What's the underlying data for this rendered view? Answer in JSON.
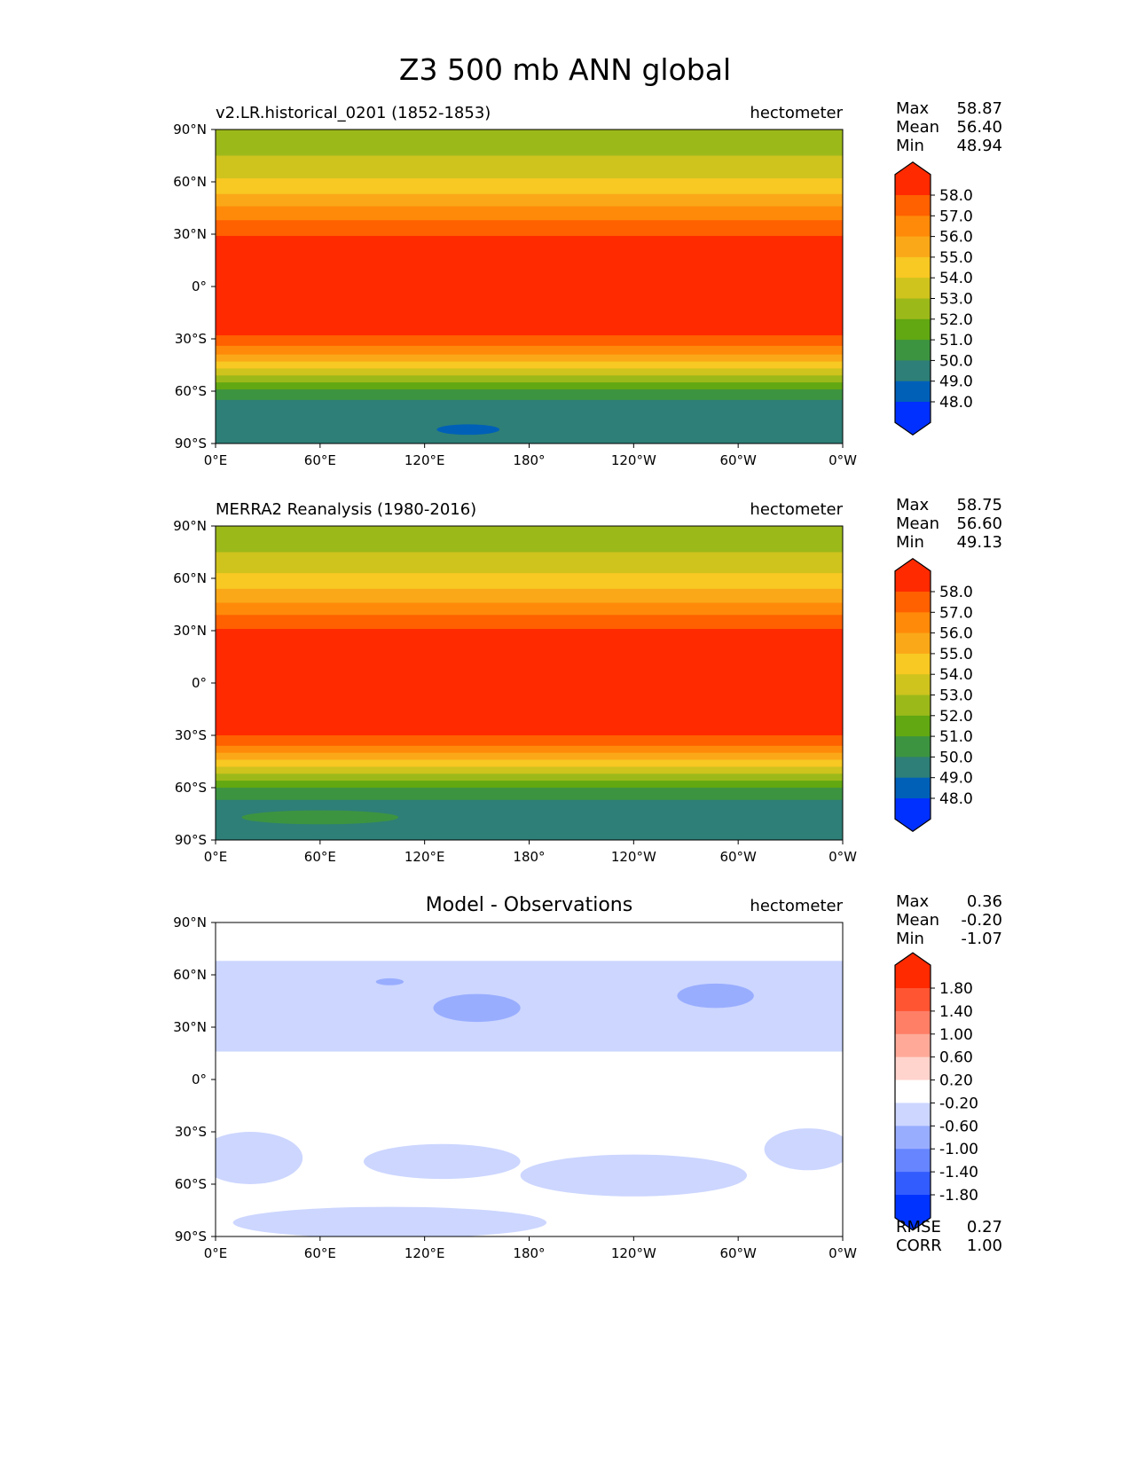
{
  "chart_data": {
    "type": "heatmap",
    "title": "Z3 500 mb ANN global",
    "xticks": [
      "0°E",
      "60°E",
      "120°E",
      "180°",
      "120°W",
      "60°W",
      "0°W"
    ],
    "yticks": [
      "90°N",
      "60°N",
      "30°N",
      "0°",
      "30°S",
      "60°S",
      "90°S"
    ],
    "panels": [
      {
        "left_title": "v2.LR.historical_0201 (1852-1853)",
        "center_title": "",
        "units": "hectometer",
        "stats": [
          [
            "Max",
            "58.87"
          ],
          [
            "Mean",
            "56.40"
          ],
          [
            "Min",
            "48.94"
          ]
        ],
        "levels": [
          "58.0",
          "57.0",
          "56.0",
          "55.0",
          "54.0",
          "53.0",
          "52.0",
          "51.0",
          "50.0",
          "49.0",
          "48.0"
        ],
        "colors": [
          "#ff2a00",
          "#ff6000",
          "#ff8a0a",
          "#fba818",
          "#f8c823",
          "#cfc31e",
          "#9cb91a",
          "#61a812",
          "#3d9440",
          "#2e7f77",
          "#0060b8",
          "#0030ff"
        ],
        "bands": [
          [
            90,
            75,
            6
          ],
          [
            75,
            62,
            5
          ],
          [
            62,
            53,
            4
          ],
          [
            53,
            46,
            3
          ],
          [
            46,
            38,
            2
          ],
          [
            38,
            29,
            1
          ],
          [
            29,
            -28,
            0
          ],
          [
            -28,
            -34,
            1
          ],
          [
            -34,
            -39,
            2
          ],
          [
            -39,
            -43,
            3
          ],
          [
            -43,
            -47,
            4
          ],
          [
            -47,
            -51,
            5
          ],
          [
            -51,
            -55,
            6
          ],
          [
            -55,
            -59,
            7
          ],
          [
            -59,
            -65,
            8
          ],
          [
            -65,
            -90,
            9
          ]
        ],
        "blobs": [
          [
            145,
            -82,
            18,
            3,
            10
          ]
        ],
        "footer": []
      },
      {
        "left_title": "MERRA2 Reanalysis (1980-2016)",
        "center_title": "",
        "units": "hectometer",
        "stats": [
          [
            "Max",
            "58.75"
          ],
          [
            "Mean",
            "56.60"
          ],
          [
            "Min",
            "49.13"
          ]
        ],
        "levels": [
          "58.0",
          "57.0",
          "56.0",
          "55.0",
          "54.0",
          "53.0",
          "52.0",
          "51.0",
          "50.0",
          "49.0",
          "48.0"
        ],
        "colors": [
          "#ff2a00",
          "#ff6000",
          "#ff8a0a",
          "#fba818",
          "#f8c823",
          "#cfc31e",
          "#9cb91a",
          "#61a812",
          "#3d9440",
          "#2e7f77",
          "#0060b8",
          "#0030ff"
        ],
        "bands": [
          [
            90,
            75,
            6
          ],
          [
            75,
            63,
            5
          ],
          [
            63,
            54,
            4
          ],
          [
            54,
            46,
            3
          ],
          [
            46,
            39,
            2
          ],
          [
            39,
            31,
            1
          ],
          [
            31,
            -30,
            0
          ],
          [
            -30,
            -36,
            1
          ],
          [
            -36,
            -40,
            2
          ],
          [
            -40,
            -44,
            3
          ],
          [
            -44,
            -48,
            4
          ],
          [
            -48,
            -52,
            5
          ],
          [
            -52,
            -56,
            6
          ],
          [
            -56,
            -60,
            7
          ],
          [
            -60,
            -67,
            8
          ],
          [
            -67,
            -90,
            9
          ]
        ],
        "blobs": [
          [
            60,
            -77,
            45,
            4,
            8
          ]
        ],
        "footer": []
      },
      {
        "left_title": "",
        "center_title": "Model - Observations",
        "units": "hectometer",
        "stats": [
          [
            "Max",
            "0.36"
          ],
          [
            "Mean",
            "-0.20"
          ],
          [
            "Min",
            "-1.07"
          ]
        ],
        "levels": [
          "1.80",
          "1.40",
          "1.00",
          "0.60",
          "0.20",
          "-0.20",
          "-0.60",
          "-1.00",
          "-1.40",
          "-1.80"
        ],
        "colors": [
          "#ff2a00",
          "#ff5533",
          "#ff7f66",
          "#ffaa99",
          "#ffd4cc",
          "#ffffff",
          "#ccd6ff",
          "#99adff",
          "#6685ff",
          "#335cff",
          "#0033ff"
        ],
        "bands": [
          [
            90,
            68,
            5
          ],
          [
            68,
            16,
            6
          ],
          [
            16,
            -28,
            5
          ],
          [
            -28,
            -90,
            5
          ]
        ],
        "blobs": [
          [
            20,
            -45,
            30,
            15,
            6
          ],
          [
            130,
            -47,
            45,
            10,
            6
          ],
          [
            240,
            -55,
            65,
            12,
            6
          ],
          [
            340,
            -40,
            25,
            12,
            6
          ],
          [
            90,
            -81,
            75,
            5,
            7
          ],
          [
            150,
            41,
            25,
            8,
            7
          ],
          [
            287,
            48,
            22,
            7,
            7
          ],
          [
            100,
            56,
            8,
            2,
            7
          ],
          [
            100,
            -82,
            90,
            9,
            6
          ]
        ],
        "footer": [
          [
            "RMSE",
            "0.27"
          ],
          [
            "CORR",
            "1.00"
          ]
        ]
      }
    ]
  }
}
